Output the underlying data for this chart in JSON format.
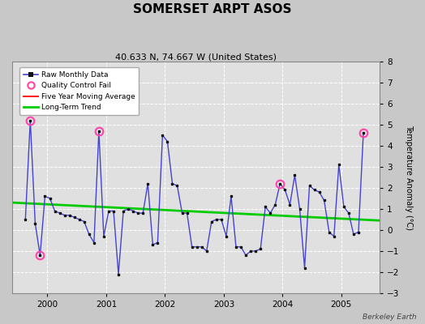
{
  "title": "SOMERSET ARPT ASOS",
  "subtitle": "40.633 N, 74.667 W (United States)",
  "ylabel": "Temperature Anomaly (°C)",
  "credit": "Berkeley Earth",
  "ylim": [
    -3,
    8
  ],
  "yticks": [
    -3,
    -2,
    -1,
    0,
    1,
    2,
    3,
    4,
    5,
    6,
    7,
    8
  ],
  "xlim_start": 1999.4,
  "xlim_end": 2005.65,
  "fig_bg": "#c8c8c8",
  "plot_bg": "#e0e0e0",
  "months": [
    1999.625,
    1999.708,
    1999.792,
    1999.875,
    1999.958,
    2000.042,
    2000.125,
    2000.208,
    2000.292,
    2000.375,
    2000.458,
    2000.542,
    2000.625,
    2000.708,
    2000.792,
    2000.875,
    2000.958,
    2001.042,
    2001.125,
    2001.208,
    2001.292,
    2001.375,
    2001.458,
    2001.542,
    2001.625,
    2001.708,
    2001.792,
    2001.875,
    2001.958,
    2002.042,
    2002.125,
    2002.208,
    2002.292,
    2002.375,
    2002.458,
    2002.542,
    2002.625,
    2002.708,
    2002.792,
    2002.875,
    2002.958,
    2003.042,
    2003.125,
    2003.208,
    2003.292,
    2003.375,
    2003.458,
    2003.542,
    2003.625,
    2003.708,
    2003.792,
    2003.875,
    2003.958,
    2004.042,
    2004.125,
    2004.208,
    2004.292,
    2004.375,
    2004.458,
    2004.542,
    2004.625,
    2004.708,
    2004.792,
    2004.875,
    2004.958,
    2005.042,
    2005.125,
    2005.208,
    2005.292,
    2005.375
  ],
  "values": [
    0.5,
    5.2,
    0.3,
    -1.2,
    1.6,
    1.5,
    0.9,
    0.8,
    0.7,
    0.7,
    0.6,
    0.5,
    0.4,
    -0.2,
    -0.6,
    4.7,
    -0.3,
    0.9,
    0.9,
    -2.1,
    0.9,
    1.0,
    0.9,
    0.8,
    0.8,
    2.2,
    -0.7,
    -0.6,
    4.5,
    4.2,
    2.2,
    2.1,
    0.8,
    0.8,
    -0.8,
    -0.8,
    -0.8,
    -1.0,
    0.4,
    0.5,
    0.5,
    -0.3,
    1.6,
    -0.8,
    -0.8,
    -1.2,
    -1.0,
    -1.0,
    -0.9,
    1.1,
    0.8,
    1.2,
    2.2,
    1.9,
    1.2,
    2.6,
    1.0,
    -1.8,
    2.1,
    1.9,
    1.8,
    1.4,
    -0.1,
    -0.3,
    3.1,
    1.1,
    0.8,
    -0.2,
    -0.1,
    4.6
  ],
  "qc_fail_indices": [
    1,
    3,
    15,
    52,
    69
  ],
  "trend_x": [
    1999.4,
    2005.65
  ],
  "trend_y": [
    1.3,
    0.45
  ],
  "xtick_positions": [
    2000,
    2001,
    2002,
    2003,
    2004,
    2005
  ],
  "xtick_labels": [
    "2000",
    "2001",
    "2002",
    "2003",
    "2004",
    "2005"
  ]
}
